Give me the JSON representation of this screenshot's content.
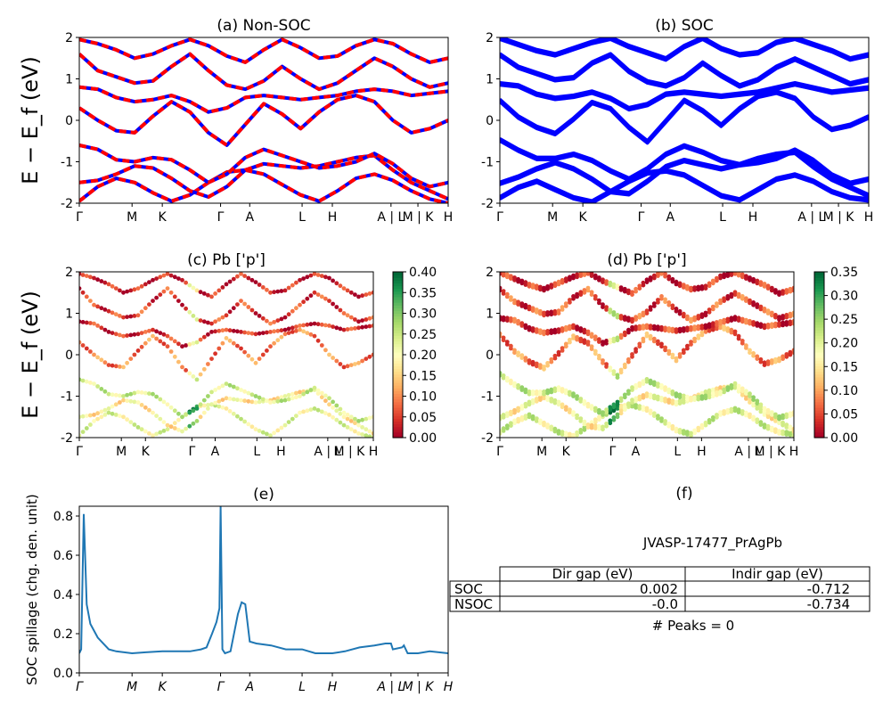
{
  "kpath": {
    "labels": [
      "Γ",
      "M",
      "K",
      "Γ",
      "A",
      "L",
      "H",
      "A | L",
      "M | K",
      "H"
    ],
    "positions": [
      0,
      0.143,
      0.225,
      0.383,
      0.462,
      0.604,
      0.686,
      0.845,
      0.918,
      1.0
    ]
  },
  "chart_data": [
    {
      "type": "line",
      "title": "(a) Non-SOC",
      "ylabel": "E − E_f (eV)",
      "ylim": [
        -2,
        2
      ],
      "yticks": [
        -2,
        -1,
        0,
        1,
        2
      ],
      "band_colors": [
        "#ff0000",
        "#0000ff"
      ],
      "bands": [
        [
          -1.95,
          -1.6,
          -1.4,
          -1.5,
          -1.75,
          -1.95,
          -1.8,
          -1.5,
          -1.25,
          -1.2,
          -1.3,
          -1.55,
          -1.8,
          -1.95,
          -1.7,
          -1.4,
          -1.3,
          -1.45,
          -1.7,
          -1.9,
          -2.0
        ],
        [
          -1.5,
          -1.45,
          -1.3,
          -1.1,
          -1.15,
          -1.4,
          -1.7,
          -1.85,
          -1.6,
          -1.2,
          -1.05,
          -1.1,
          -1.15,
          -1.1,
          -1.0,
          -0.9,
          -0.85,
          -1.2,
          -1.5,
          -1.7,
          -1.9
        ],
        [
          -0.6,
          -0.7,
          -0.95,
          -1.0,
          -0.9,
          -0.95,
          -1.2,
          -1.5,
          -1.3,
          -0.9,
          -0.7,
          -0.85,
          -1.0,
          -1.15,
          -1.1,
          -1.0,
          -0.8,
          -1.05,
          -1.4,
          -1.6,
          -1.5
        ],
        [
          0.3,
          0.0,
          -0.25,
          -0.3,
          0.1,
          0.45,
          0.2,
          -0.3,
          -0.6,
          -0.1,
          0.4,
          0.15,
          -0.2,
          0.2,
          0.5,
          0.6,
          0.45,
          0.0,
          -0.3,
          -0.2,
          0.0
        ],
        [
          0.8,
          0.75,
          0.55,
          0.45,
          0.5,
          0.6,
          0.45,
          0.2,
          0.3,
          0.55,
          0.6,
          0.55,
          0.5,
          0.55,
          0.6,
          0.7,
          0.75,
          0.7,
          0.6,
          0.65,
          0.7
        ],
        [
          1.6,
          1.2,
          1.05,
          0.9,
          0.95,
          1.3,
          1.6,
          1.2,
          0.85,
          0.75,
          0.95,
          1.3,
          1.0,
          0.75,
          0.9,
          1.2,
          1.5,
          1.3,
          1.0,
          0.8,
          0.9
        ],
        [
          1.95,
          1.85,
          1.7,
          1.5,
          1.6,
          1.8,
          1.95,
          1.8,
          1.55,
          1.4,
          1.7,
          1.95,
          1.75,
          1.5,
          1.55,
          1.8,
          1.95,
          1.85,
          1.6,
          1.4,
          1.5
        ]
      ]
    },
    {
      "type": "line",
      "title": "(b) SOC",
      "ylim": [
        -2,
        2
      ],
      "yticks": [
        -2,
        -1,
        0,
        1,
        2
      ],
      "band_colors": [
        "#0000ff"
      ],
      "bands": [
        [
          -1.9,
          -1.65,
          -1.5,
          -1.7,
          -1.9,
          -2.0,
          -1.75,
          -1.5,
          -1.3,
          -1.25,
          -1.35,
          -1.6,
          -1.85,
          -1.95,
          -1.7,
          -1.45,
          -1.35,
          -1.5,
          -1.75,
          -1.9,
          -1.95
        ],
        [
          -1.55,
          -1.4,
          -1.2,
          -1.05,
          -1.2,
          -1.45,
          -1.75,
          -1.8,
          -1.5,
          -1.15,
          -1.0,
          -1.1,
          -1.2,
          -1.1,
          -0.95,
          -0.85,
          -0.8,
          -1.15,
          -1.45,
          -1.65,
          -1.85
        ],
        [
          -0.5,
          -0.75,
          -0.95,
          -0.95,
          -0.85,
          -1.0,
          -1.25,
          -1.45,
          -1.2,
          -0.85,
          -0.65,
          -0.8,
          -1.0,
          -1.1,
          -1.05,
          -0.95,
          -0.75,
          -1.0,
          -1.35,
          -1.55,
          -1.45
        ],
        [
          0.45,
          0.05,
          -0.2,
          -0.35,
          0.0,
          0.4,
          0.25,
          -0.2,
          -0.55,
          -0.05,
          0.45,
          0.2,
          -0.15,
          0.25,
          0.55,
          0.65,
          0.5,
          0.05,
          -0.25,
          -0.15,
          0.05
        ],
        [
          0.85,
          0.8,
          0.6,
          0.5,
          0.55,
          0.65,
          0.5,
          0.25,
          0.35,
          0.6,
          0.65,
          0.6,
          0.55,
          0.6,
          0.65,
          0.75,
          0.85,
          0.75,
          0.65,
          0.7,
          0.75
        ],
        [
          1.55,
          1.25,
          1.1,
          0.95,
          1.0,
          1.35,
          1.55,
          1.15,
          0.9,
          0.8,
          1.0,
          1.35,
          1.05,
          0.8,
          0.95,
          1.25,
          1.45,
          1.25,
          1.05,
          0.85,
          0.95
        ],
        [
          1.95,
          1.8,
          1.65,
          1.55,
          1.7,
          1.85,
          1.95,
          1.75,
          1.6,
          1.45,
          1.75,
          1.95,
          1.7,
          1.55,
          1.6,
          1.85,
          1.95,
          1.8,
          1.65,
          1.45,
          1.55
        ]
      ]
    },
    {
      "type": "scatter",
      "title": "(c)  Pb ['p']",
      "ylabel": "E − E_f (eV)",
      "ylim": [
        -2,
        2
      ],
      "yticks": [
        -2,
        -1,
        0,
        1,
        2
      ],
      "colorbar": {
        "min": 0.0,
        "max": 0.4,
        "ticks": [
          "0.00",
          "0.05",
          "0.10",
          "0.15",
          "0.20",
          "0.25",
          "0.30",
          "0.35",
          "0.40"
        ],
        "colormap": "RdYlGn"
      },
      "band_weights": [
        0.22,
        0.18,
        0.24,
        0.09,
        0.04,
        0.05,
        0.03
      ],
      "bands_source": "(a) Non-SOC"
    },
    {
      "type": "scatter",
      "title": "(d) Pb ['p']",
      "ylim": [
        -2,
        2
      ],
      "yticks": [
        -2,
        -1,
        0,
        1,
        2
      ],
      "colorbar": {
        "min": 0.0,
        "max": 0.35,
        "ticks": [
          "0.00",
          "0.05",
          "0.10",
          "0.15",
          "0.20",
          "0.25",
          "0.30",
          "0.35"
        ],
        "colormap": "RdYlGn"
      },
      "band_weights": [
        0.2,
        0.17,
        0.21,
        0.08,
        0.04,
        0.05,
        0.03
      ],
      "bands_source": "(b) SOC"
    },
    {
      "type": "line",
      "title": "(e)",
      "ylabel": "SOC spillage (chg. den. unit)",
      "ylim": [
        0,
        0.85
      ],
      "yticks": [
        "0.0",
        "0.2",
        "0.4",
        "0.6",
        "0.8"
      ],
      "color": "#1f77b4",
      "x": [
        0,
        0.005,
        0.012,
        0.02,
        0.03,
        0.05,
        0.08,
        0.1,
        0.143,
        0.18,
        0.225,
        0.26,
        0.3,
        0.33,
        0.345,
        0.36,
        0.372,
        0.38,
        0.383,
        0.388,
        0.395,
        0.41,
        0.43,
        0.44,
        0.45,
        0.462,
        0.48,
        0.52,
        0.56,
        0.604,
        0.64,
        0.686,
        0.72,
        0.76,
        0.8,
        0.83,
        0.845,
        0.85,
        0.875,
        0.88,
        0.89,
        0.91,
        0.918,
        0.95,
        1.0
      ],
      "y": [
        0.1,
        0.12,
        0.81,
        0.35,
        0.25,
        0.18,
        0.12,
        0.11,
        0.1,
        0.105,
        0.11,
        0.11,
        0.11,
        0.12,
        0.13,
        0.2,
        0.26,
        0.33,
        0.85,
        0.12,
        0.1,
        0.11,
        0.3,
        0.36,
        0.35,
        0.16,
        0.15,
        0.14,
        0.12,
        0.12,
        0.1,
        0.1,
        0.11,
        0.13,
        0.14,
        0.15,
        0.15,
        0.12,
        0.13,
        0.14,
        0.1,
        0.1,
        0.1,
        0.11,
        0.1
      ]
    }
  ],
  "panel_f": {
    "title": "(f)",
    "material": "JVASP-17477_PrAgPb",
    "table": {
      "headers": [
        "Dir gap (eV)",
        "Indir gap (eV)"
      ],
      "rows": [
        {
          "label": "SOC",
          "dir": "0.002",
          "indir": "-0.712"
        },
        {
          "label": "NSOC",
          "dir": "-0.0",
          "indir": "-0.734"
        }
      ]
    },
    "peaks": "# Peaks = 0"
  }
}
